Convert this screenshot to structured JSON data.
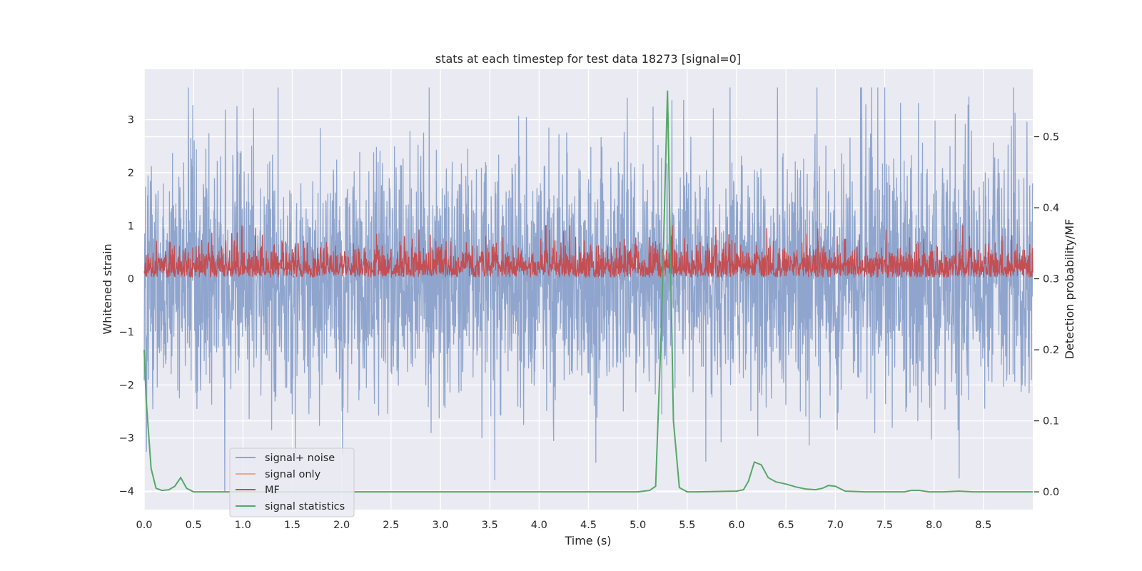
{
  "chart_data": {
    "type": "line",
    "title": "stats at each timestep for test data 18273 [signal=0]",
    "xlabel": "Time (s)",
    "ylabel": "Whitened strain",
    "y2label": "Detection probability/MF",
    "xlim": [
      0.0,
      9.0
    ],
    "ylim": [
      -4.35,
      3.95
    ],
    "y2lim": [
      -0.025,
      0.595
    ],
    "x_ticks": [
      0.0,
      0.5,
      1.0,
      1.5,
      2.0,
      2.5,
      3.0,
      3.5,
      4.0,
      4.5,
      5.0,
      5.5,
      6.0,
      6.5,
      7.0,
      7.5,
      8.0,
      8.5
    ],
    "x_tick_labels": [
      "0.0",
      "0.5",
      "1.0",
      "1.5",
      "2.0",
      "2.5",
      "3.0",
      "3.5",
      "4.0",
      "4.5",
      "5.0",
      "5.5",
      "6.0",
      "6.5",
      "7.0",
      "7.5",
      "8.0",
      "8.5"
    ],
    "y_ticks": [
      -4,
      -3,
      -2,
      -1,
      0,
      1,
      2,
      3
    ],
    "y_tick_labels": [
      "−4",
      "−3",
      "−2",
      "−1",
      "0",
      "1",
      "2",
      "3"
    ],
    "y2_ticks": [
      0.0,
      0.1,
      0.2,
      0.3,
      0.4,
      0.5
    ],
    "y2_tick_labels": [
      "0.0",
      "0.1",
      "0.2",
      "0.3",
      "0.4",
      "0.5"
    ],
    "grid": true,
    "legend_position": "lower-left",
    "colors": {
      "noise": "#8fa5cd",
      "signal_only": "#eba88f",
      "mf": "#c44e52",
      "stat": "#55a868",
      "background": "#eaeaf2",
      "grid": "#ffffff"
    },
    "legend": [
      {
        "label": "signal+ noise",
        "color": "#8fa5cd"
      },
      {
        "label": "signal only",
        "color": "#eba88f"
      },
      {
        "label": "MF",
        "color": "#c44e52"
      },
      {
        "label": "signal statistics",
        "color": "#55a868"
      }
    ],
    "series": [
      {
        "name": "signal statistics",
        "axis": "right",
        "x": [
          0.0,
          0.02,
          0.07,
          0.12,
          0.18,
          0.25,
          0.31,
          0.37,
          0.43,
          0.5,
          0.6,
          1.0,
          2.0,
          3.0,
          4.0,
          4.5,
          5.0,
          5.12,
          5.18,
          5.24,
          5.3,
          5.36,
          5.42,
          5.5,
          5.6,
          6.0,
          6.07,
          6.12,
          6.18,
          6.25,
          6.32,
          6.4,
          6.5,
          6.6,
          6.7,
          6.8,
          6.87,
          6.93,
          7.0,
          7.1,
          7.3,
          7.5,
          7.7,
          7.77,
          7.85,
          7.95,
          8.1,
          8.25,
          8.4,
          8.6,
          9.0
        ],
        "y": [
          0.2,
          0.13,
          0.033,
          0.005,
          0.002,
          0.003,
          0.008,
          0.02,
          0.005,
          0.0,
          0.0,
          0.0,
          0.0,
          0.0,
          0.0,
          0.0,
          0.0,
          0.002,
          0.008,
          0.24,
          0.565,
          0.1,
          0.006,
          0.0,
          0.0,
          0.001,
          0.003,
          0.015,
          0.042,
          0.038,
          0.02,
          0.014,
          0.011,
          0.007,
          0.004,
          0.003,
          0.005,
          0.009,
          0.008,
          0.001,
          0.0,
          0.0,
          0.0,
          0.002,
          0.002,
          0.0,
          0.0,
          0.001,
          0.0,
          0.0,
          0.0
        ]
      },
      {
        "name": "signal+ noise",
        "axis": "left",
        "description_range": [
          -4.0,
          3.6
        ]
      },
      {
        "name": "MF",
        "axis": "left",
        "description_range": [
          0.0,
          1.0
        ]
      }
    ]
  }
}
